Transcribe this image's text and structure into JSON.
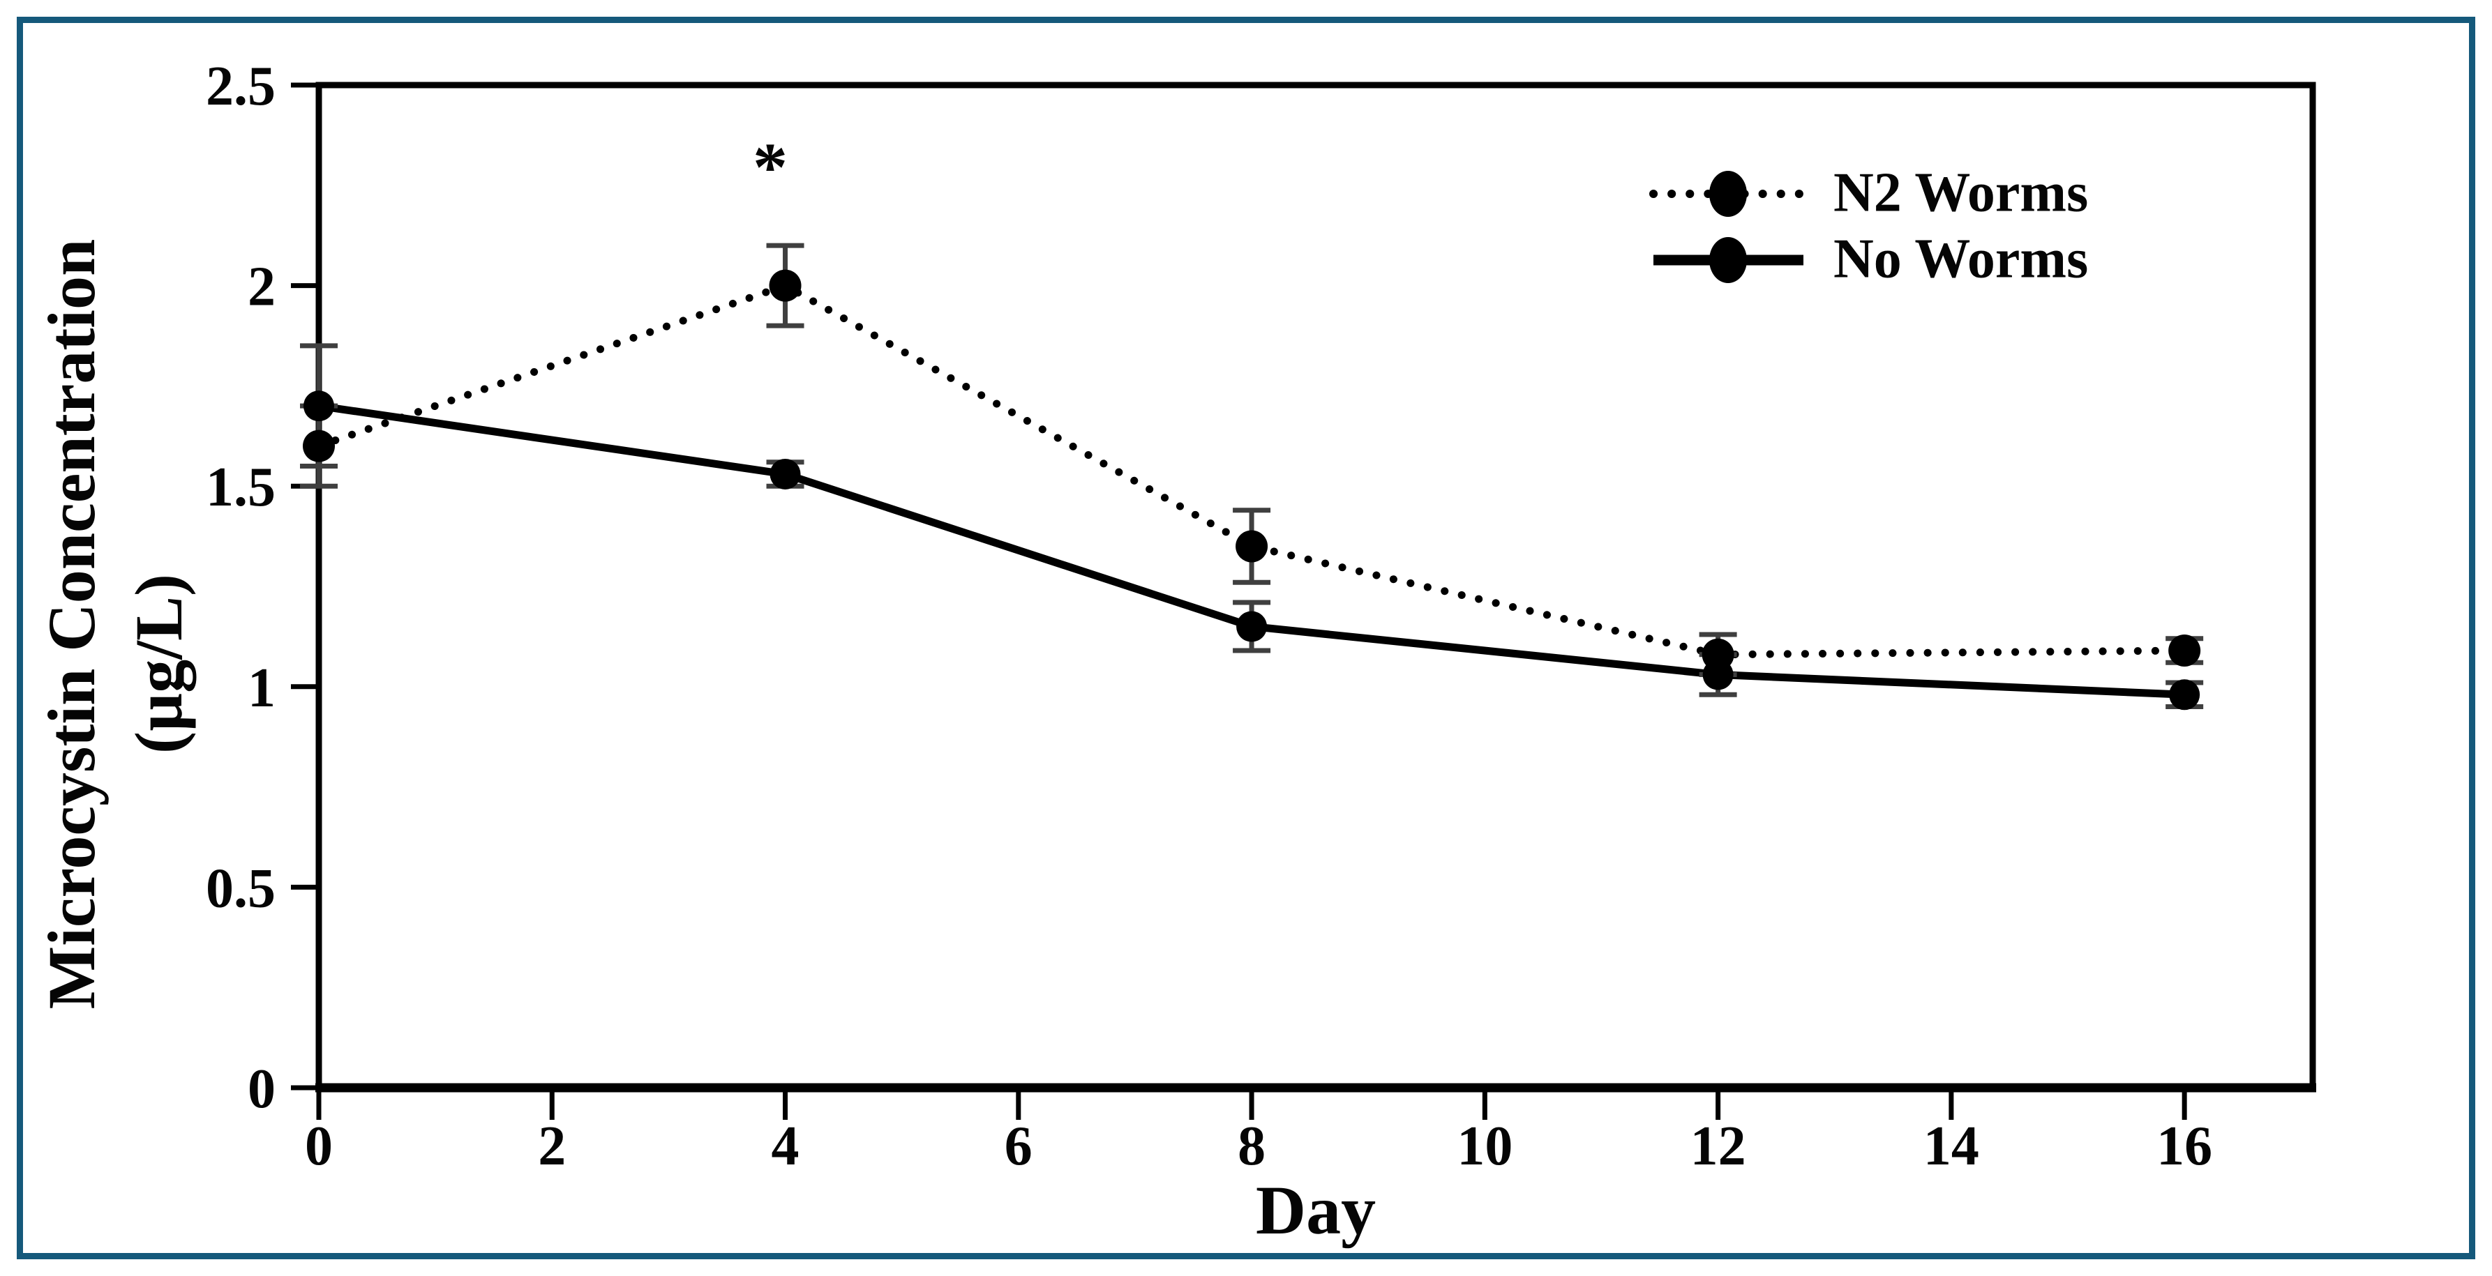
{
  "figure": {
    "border_color": "#15597b",
    "background_color": "#ffffff",
    "plot_frame_color": "#000000",
    "error_bar_color": "#3f3f3f",
    "text_color": "#050505"
  },
  "chart_data": {
    "type": "line",
    "title": "",
    "xlabel": "Day",
    "ylabel_line1": "Microcystin Concentration",
    "ylabel_line2": "(µg/L)",
    "x": [
      0,
      4,
      8,
      12,
      16
    ],
    "xlim": [
      0,
      17.1
    ],
    "ylim": [
      0,
      2.5
    ],
    "xtick_values": [
      0,
      2,
      4,
      6,
      8,
      10,
      12,
      14,
      16
    ],
    "xtick_labels": [
      "0",
      "2",
      "4",
      "6",
      "8",
      "10",
      "12",
      "14",
      "16"
    ],
    "ytick_values": [
      0,
      0.5,
      1,
      1.5,
      2,
      2.5
    ],
    "ytick_labels": [
      "0",
      "0.5",
      "1",
      "1.5",
      "2",
      "2.5"
    ],
    "grid": false,
    "legend_position": "top-right",
    "series": [
      {
        "name": "N2 Worms",
        "line_style": "dotted",
        "marker": "filled-circle",
        "color": "#000000",
        "values": [
          1.6,
          2.0,
          1.35,
          1.08,
          1.09
        ],
        "errors": [
          0.1,
          0.1,
          0.09,
          0.05,
          0.03
        ]
      },
      {
        "name": "No Worms",
        "line_style": "solid",
        "marker": "filled-circle",
        "color": "#000000",
        "values": [
          1.7,
          1.53,
          1.15,
          1.03,
          0.98
        ],
        "errors": [
          0.15,
          0.03,
          0.06,
          0.05,
          0.03
        ]
      }
    ],
    "annotation": {
      "text": "*",
      "x": 3.87,
      "y": 2.31
    }
  }
}
